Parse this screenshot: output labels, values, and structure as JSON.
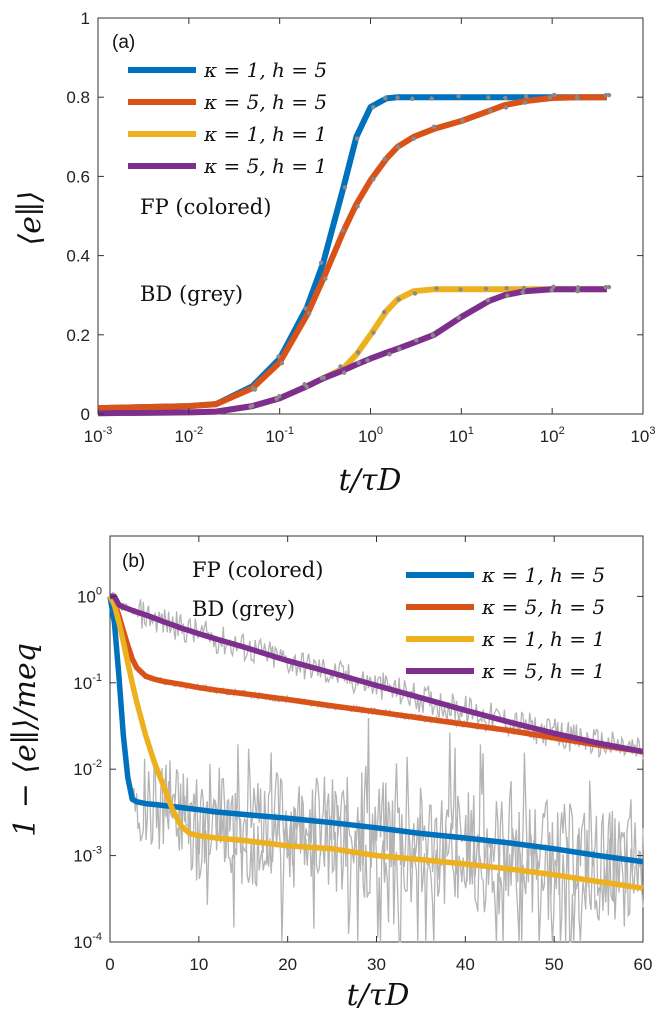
{
  "chart_data": [
    {
      "panel_label": "(a)",
      "type": "line",
      "xscale": "log",
      "xlim": [
        0.001,
        1000
      ],
      "ylim": [
        0,
        1
      ],
      "xticks": [
        "10-3",
        "10-2",
        "10-1",
        "100",
        "101",
        "102",
        "103"
      ],
      "yticks": [
        "0",
        "0.2",
        "0.4",
        "0.6",
        "0.8",
        "1"
      ],
      "xlabel": "t/τD",
      "ylabel": "⟨e∥⟩",
      "annotations": [
        "FP (colored)",
        "BD (grey)"
      ],
      "legend_position": "top-left",
      "grid": false,
      "x": [
        0.001,
        0.01,
        0.02,
        0.05,
        0.1,
        0.2,
        0.3,
        0.5,
        0.7,
        1,
        1.5,
        2,
        3,
        5,
        10,
        20,
        30,
        50,
        100,
        200,
        400
      ],
      "series": [
        {
          "name": "κ = 1, h = 5",
          "color": "#0072BD",
          "values": [
            0.015,
            0.02,
            0.025,
            0.07,
            0.14,
            0.27,
            0.38,
            0.57,
            0.7,
            0.775,
            0.797,
            0.8,
            0.8,
            0.8,
            0.8,
            0.8,
            0.8,
            0.8,
            0.8,
            0.8,
            0.8
          ]
        },
        {
          "name": "κ = 5, h = 5",
          "color": "#D95319",
          "values": [
            0.015,
            0.02,
            0.025,
            0.065,
            0.13,
            0.25,
            0.34,
            0.46,
            0.53,
            0.59,
            0.645,
            0.675,
            0.7,
            0.72,
            0.74,
            0.765,
            0.78,
            0.79,
            0.798,
            0.8,
            0.8
          ]
        },
        {
          "name": "κ = 1, h = 1",
          "color": "#EDB120",
          "values": [
            0.002,
            0.004,
            0.006,
            0.02,
            0.04,
            0.07,
            0.09,
            0.115,
            0.15,
            0.2,
            0.26,
            0.29,
            0.31,
            0.315,
            0.315,
            0.315,
            0.315,
            0.315,
            0.315,
            0.315,
            0.315
          ]
        },
        {
          "name": "κ = 5, h = 1",
          "color": "#7E2F8E",
          "values": [
            0.002,
            0.004,
            0.006,
            0.02,
            0.04,
            0.07,
            0.09,
            0.11,
            0.125,
            0.14,
            0.155,
            0.165,
            0.18,
            0.2,
            0.245,
            0.285,
            0.3,
            0.31,
            0.315,
            0.315,
            0.315
          ]
        }
      ]
    },
    {
      "panel_label": "(b)",
      "type": "line",
      "yscale": "log",
      "xlim": [
        0,
        60
      ],
      "ylim": [
        0.0001,
        5
      ],
      "xticks": [
        "0",
        "10",
        "20",
        "30",
        "40",
        "50",
        "60"
      ],
      "yticks": [
        "10-4",
        "10-3",
        "10-2",
        "10-1",
        "100"
      ],
      "xlabel": "t/τD",
      "ylabel": "1 − ⟨e∥⟩/meq",
      "annotations": [
        "FP (colored)",
        "BD (grey)"
      ],
      "legend_position": "top-right",
      "grid": false,
      "x": [
        0,
        0.5,
        1,
        1.5,
        2,
        2.5,
        3,
        4,
        5,
        6,
        7,
        8,
        9,
        10,
        12,
        15,
        20,
        25,
        30,
        35,
        40,
        45,
        50,
        55,
        60
      ],
      "series": [
        {
          "name": "κ = 1, h = 5",
          "color": "#0072BD",
          "values": [
            1.0,
            0.5,
            0.12,
            0.025,
            0.008,
            0.0045,
            0.0042,
            0.004,
            0.0039,
            0.0038,
            0.0037,
            0.0036,
            0.0035,
            0.0034,
            0.0032,
            0.003,
            0.0027,
            0.0024,
            0.0021,
            0.0018,
            0.0016,
            0.0014,
            0.0012,
            0.001,
            0.00085
          ]
        },
        {
          "name": "κ = 5, h = 5",
          "color": "#D95319",
          "values": [
            1.0,
            0.85,
            0.6,
            0.4,
            0.27,
            0.19,
            0.15,
            0.12,
            0.11,
            0.104,
            0.1,
            0.096,
            0.092,
            0.088,
            0.082,
            0.075,
            0.064,
            0.054,
            0.046,
            0.039,
            0.033,
            0.028,
            0.023,
            0.019,
            0.016
          ]
        },
        {
          "name": "κ = 1, h = 1",
          "color": "#EDB120",
          "values": [
            1.0,
            0.8,
            0.5,
            0.3,
            0.17,
            0.1,
            0.06,
            0.025,
            0.012,
            0.0065,
            0.0035,
            0.0022,
            0.0018,
            0.0017,
            0.0016,
            0.0015,
            0.0013,
            0.0012,
            0.001,
            0.0009,
            0.0008,
            0.0007,
            0.0006,
            0.0005,
            0.00042
          ]
        },
        {
          "name": "κ = 5, h = 1",
          "color": "#7E2F8E",
          "values": [
            1.0,
            1.0,
            0.8,
            0.75,
            0.72,
            0.69,
            0.66,
            0.61,
            0.56,
            0.51,
            0.47,
            0.43,
            0.4,
            0.37,
            0.32,
            0.26,
            0.18,
            0.13,
            0.093,
            0.067,
            0.048,
            0.035,
            0.026,
            0.02,
            0.016
          ]
        }
      ]
    }
  ]
}
